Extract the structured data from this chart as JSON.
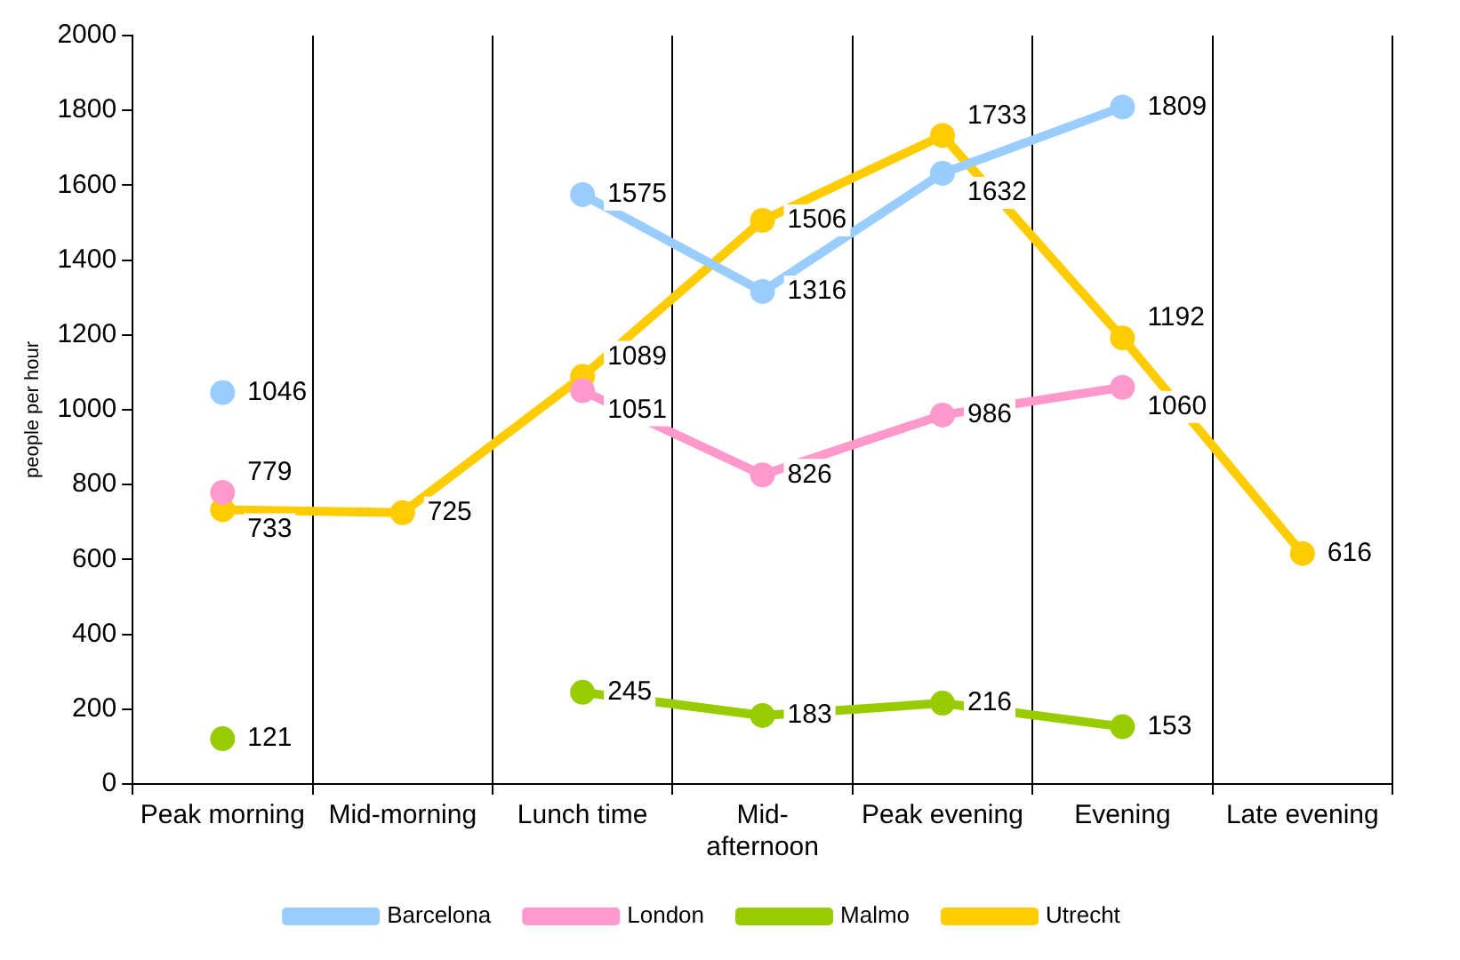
{
  "chart_data": {
    "type": "line",
    "ylabel": "people per hour",
    "categories": [
      "Peak morning",
      "Mid-morning",
      "Lunch time",
      "Mid-afternoon",
      "Peak evening",
      "Evening",
      "Late evening"
    ],
    "series": [
      {
        "name": "Barcelona",
        "color": "#99ccff",
        "values": [
          1046,
          null,
          1575,
          1316,
          1632,
          1809,
          null
        ]
      },
      {
        "name": "London",
        "color": "#ff99cc",
        "values": [
          779,
          null,
          1051,
          826,
          986,
          1060,
          null
        ]
      },
      {
        "name": "Malmo",
        "color": "#99cc00",
        "values": [
          121,
          null,
          245,
          183,
          216,
          153,
          null
        ]
      },
      {
        "name": "Utrecht",
        "color": "#ffcc00",
        "values": [
          733,
          725,
          1089,
          1506,
          1733,
          1192,
          616
        ]
      }
    ],
    "ylim": [
      0,
      2000
    ],
    "yticks": [
      0,
      200,
      400,
      600,
      800,
      1000,
      1200,
      1400,
      1600,
      1800,
      2000
    ],
    "grid": "x",
    "legend": "bottom",
    "marker": "circle",
    "line_style": "solid",
    "data_labels": true
  }
}
